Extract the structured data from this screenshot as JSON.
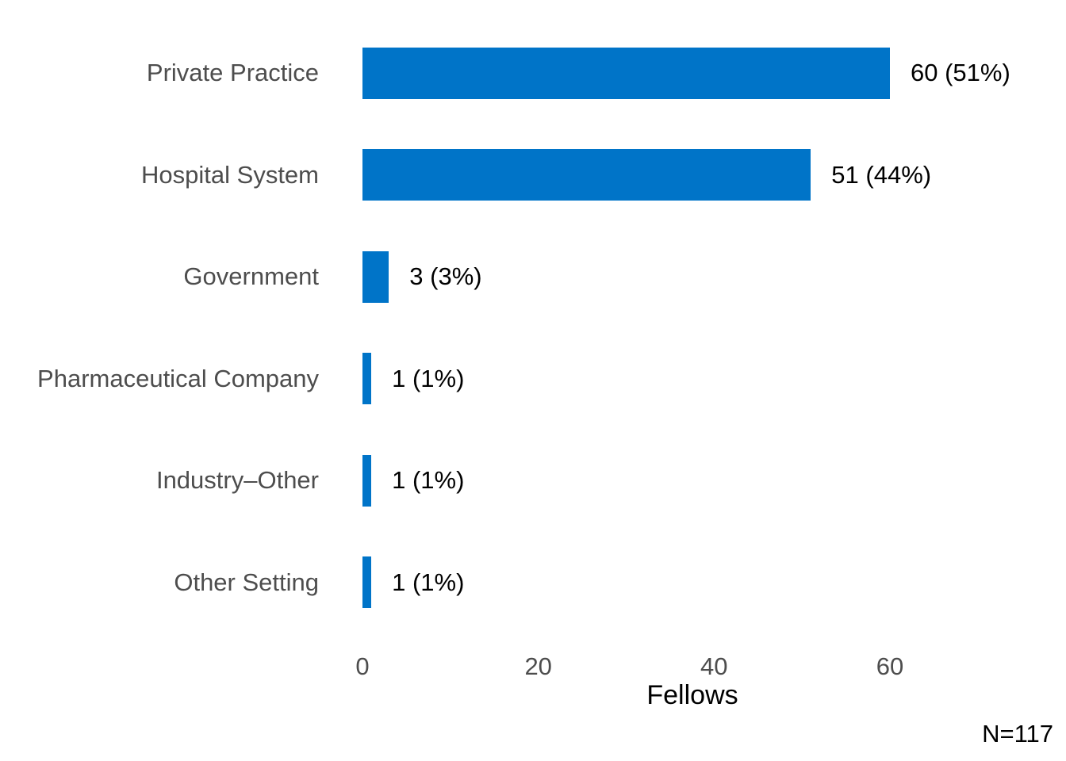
{
  "chart_data": {
    "type": "bar",
    "orientation": "horizontal",
    "title": "",
    "categories": [
      "Private Practice",
      "Hospital System",
      "Government",
      "Pharmaceutical Company",
      "Industry–Other",
      "Other Setting"
    ],
    "values": [
      60,
      51,
      3,
      1,
      1,
      1
    ],
    "value_labels": [
      "60 (51%)",
      "51 (44%)",
      "3 (3%)",
      "1 (1%)",
      "1 (1%)",
      "1 (1%)"
    ],
    "xlabel": "Fellows",
    "x_ticks": [
      0,
      20,
      40,
      60
    ],
    "xlim": [
      0,
      75
    ],
    "grid": false,
    "legend": "none",
    "bar_color": "#0074c8"
  },
  "annotations": {
    "sample_size": "N=117"
  },
  "colors": {
    "background": "#ffffff",
    "bar": "#0074c8",
    "category_label": "#4d4d4d",
    "tick_label": "#4d4d4d",
    "value_label": "#000000",
    "axis_title": "#000000"
  }
}
